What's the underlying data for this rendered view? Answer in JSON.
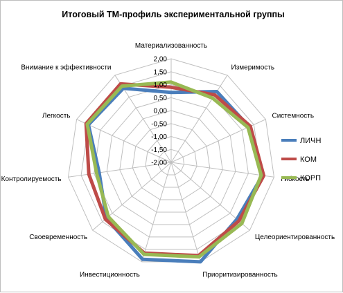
{
  "chart_data": {
    "type": "radar",
    "title": "Итоговый ТМ-профиль экспериментальной группы",
    "categories": [
      "Материализованность",
      "Измеримость",
      "Системность",
      "Гибкость",
      "Целеориентированность",
      "Приоритизированность",
      "Инвестиционность",
      "Своевременность",
      "Контролируемость",
      "Легкость",
      "Внимание к эффективности"
    ],
    "series": [
      {
        "name": "ЛИЧН",
        "color": "#4a7ebb",
        "values": [
          0.7,
          1.25,
          1.3,
          1.55,
          1.35,
          2.0,
          1.9,
          1.3,
          0.8,
          1.5,
          1.4
        ]
      },
      {
        "name": "КОМ",
        "color": "#be4b48",
        "values": [
          0.9,
          1.1,
          1.35,
          1.6,
          1.45,
          1.75,
          1.65,
          1.35,
          1.2,
          1.6,
          1.6
        ]
      },
      {
        "name": "КОРП",
        "color": "#98b954",
        "values": [
          1.1,
          0.95,
          1.25,
          1.5,
          1.6,
          1.8,
          1.7,
          1.2,
          0.9,
          1.55,
          1.5
        ]
      }
    ],
    "rlim": [
      -2.0,
      2.0
    ],
    "ticks": [
      "-2,00",
      "-1,50",
      "-1,00",
      "-0,50",
      "0,00",
      "0,50",
      "1,00",
      "1,50",
      "2,00"
    ],
    "tick_values": [
      -2.0,
      -1.5,
      -1.0,
      -0.5,
      0.0,
      0.5,
      1.0,
      1.5,
      2.0
    ],
    "grid": true,
    "legend_position": "right",
    "grid_color": "#bfbfbf"
  }
}
